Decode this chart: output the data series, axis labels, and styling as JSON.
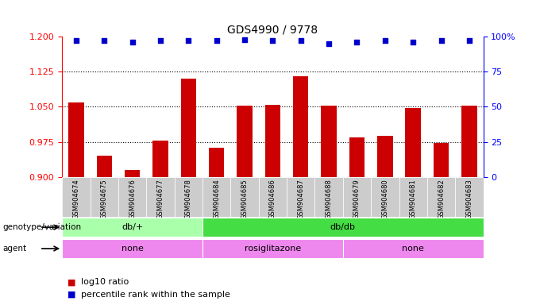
{
  "title": "GDS4990 / 9778",
  "samples": [
    "GSM904674",
    "GSM904675",
    "GSM904676",
    "GSM904677",
    "GSM904678",
    "GSM904684",
    "GSM904685",
    "GSM904686",
    "GSM904687",
    "GSM904688",
    "GSM904679",
    "GSM904680",
    "GSM904681",
    "GSM904682",
    "GSM904683"
  ],
  "log10_ratio": [
    1.06,
    0.945,
    0.915,
    0.978,
    1.11,
    0.962,
    1.052,
    1.054,
    1.115,
    1.052,
    0.985,
    0.987,
    1.047,
    0.972,
    1.052
  ],
  "percentile": [
    97,
    97,
    96,
    97,
    97,
    97,
    98,
    97,
    97,
    95,
    96,
    97,
    96,
    97,
    97
  ],
  "bar_color": "#cc0000",
  "dot_color": "#0000cc",
  "ylim_left": [
    0.9,
    1.2
  ],
  "ylim_right": [
    0,
    100
  ],
  "yticks_left": [
    0.9,
    0.975,
    1.05,
    1.125,
    1.2
  ],
  "yticks_right": [
    0,
    25,
    50,
    75,
    100
  ],
  "hlines": [
    1.125,
    1.05,
    0.975
  ],
  "baseline": 0.9,
  "genotype_groups": [
    {
      "label": "db/+",
      "start": 0,
      "end": 5,
      "color": "#aaffaa"
    },
    {
      "label": "db/db",
      "start": 5,
      "end": 15,
      "color": "#44dd44"
    }
  ],
  "agent_groups": [
    {
      "label": "none",
      "start": 0,
      "end": 5,
      "color": "#ee88ee"
    },
    {
      "label": "rosiglitazone",
      "start": 5,
      "end": 10,
      "color": "#ee88ee"
    },
    {
      "label": "none",
      "start": 10,
      "end": 15,
      "color": "#ee88ee"
    }
  ],
  "genotype_label": "genotype/variation",
  "agent_label": "agent",
  "legend_red_label": "log10 ratio",
  "legend_blue_label": "percentile rank within the sample",
  "bar_color_red": "#cc0000",
  "dot_color_blue": "#0000cc",
  "background_color": "#ffffff",
  "tick_bg_color": "#cccccc"
}
